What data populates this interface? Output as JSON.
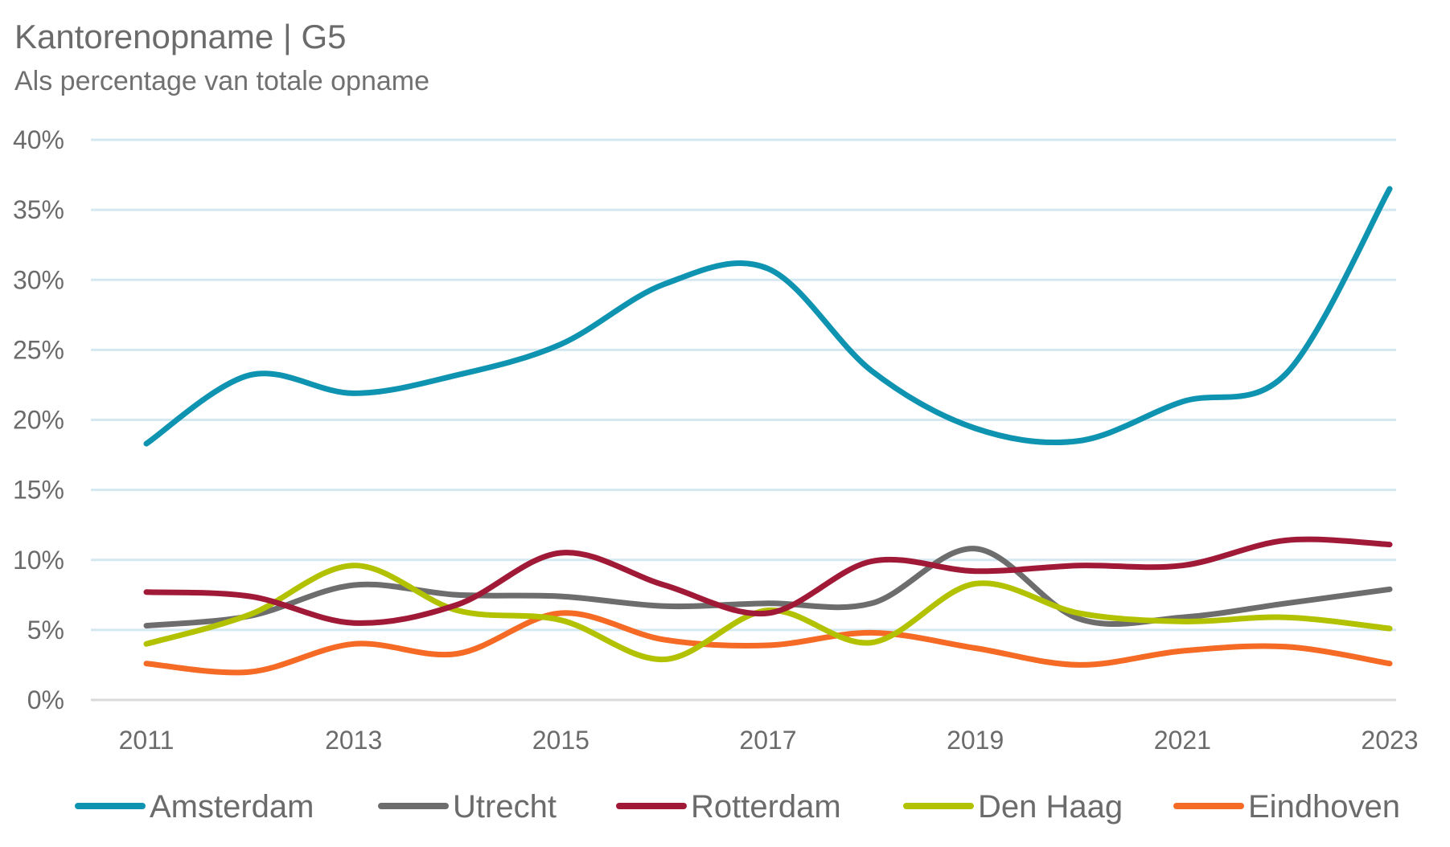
{
  "title": "Kantorenopname | G5",
  "subtitle": "Als percentage van totale opname",
  "chart_data": {
    "type": "line",
    "title": "Kantorenopname | G5",
    "subtitle": "Als percentage van totale opname",
    "xlabel": "",
    "ylabel": "",
    "x": [
      2011,
      2012,
      2013,
      2014,
      2015,
      2016,
      2017,
      2018,
      2019,
      2020,
      2021,
      2022,
      2023
    ],
    "x_tick_labels": [
      "2011",
      "2013",
      "2015",
      "2017",
      "2019",
      "2021",
      "2023"
    ],
    "y_ticks": [
      0,
      5,
      10,
      15,
      20,
      25,
      30,
      35,
      40
    ],
    "y_tick_labels": [
      "0%",
      "5%",
      "10%",
      "15%",
      "20%",
      "25%",
      "30%",
      "35%",
      "40%"
    ],
    "ylim": [
      0,
      40
    ],
    "grid": "horizontal",
    "legend_position": "bottom",
    "series": [
      {
        "name": "Amsterdam",
        "color": "#0e93b1",
        "values": [
          18.3,
          23.2,
          21.9,
          23.2,
          25.4,
          29.7,
          30.8,
          23.5,
          19.4,
          18.5,
          21.3,
          23.3,
          36.5
        ]
      },
      {
        "name": "Utrecht",
        "color": "#6d6d6d",
        "values": [
          5.3,
          6.0,
          8.2,
          7.5,
          7.4,
          6.7,
          6.9,
          6.9,
          10.8,
          5.8,
          5.9,
          6.9,
          7.9
        ]
      },
      {
        "name": "Rotterdam",
        "color": "#a01a37",
        "values": [
          7.7,
          7.4,
          5.5,
          6.8,
          10.5,
          8.2,
          6.2,
          9.9,
          9.2,
          9.6,
          9.6,
          11.4,
          11.1
        ]
      },
      {
        "name": "Den Haag",
        "color": "#b2c200",
        "values": [
          4.0,
          6.1,
          9.6,
          6.4,
          5.7,
          2.9,
          6.4,
          4.1,
          8.3,
          6.2,
          5.6,
          5.9,
          5.1
        ]
      },
      {
        "name": "Eindhoven",
        "color": "#f56a25",
        "values": [
          2.6,
          2.0,
          4.0,
          3.3,
          6.2,
          4.3,
          3.9,
          4.8,
          3.7,
          2.5,
          3.5,
          3.8,
          2.6
        ]
      }
    ]
  }
}
